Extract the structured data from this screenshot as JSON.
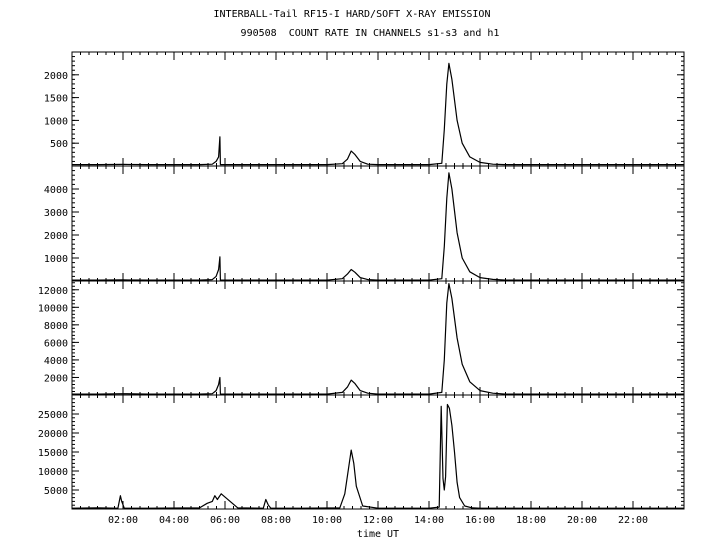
{
  "title": "INTERBALL-Tail RF15-I HARD/SOFT X-RAY EMISSION",
  "subtitle": "990508  COUNT RATE IN CHANNELS s1-s3 and h1",
  "chart_data": {
    "type": "line",
    "title": "INTERBALL-Tail RF15-I HARD/SOFT X-RAY EMISSION",
    "subtitle": "990508  COUNT RATE IN CHANNELS s1-s3 and h1",
    "xlabel": "time UT",
    "xlim": [
      0,
      24
    ],
    "x_ticks": [
      2,
      4,
      6,
      8,
      10,
      12,
      14,
      16,
      18,
      20,
      22
    ],
    "x_tick_labels": [
      "02:00",
      "04:00",
      "06:00",
      "08:00",
      "10:00",
      "12:00",
      "14:00",
      "16:00",
      "18:00",
      "20:00",
      "22:00"
    ],
    "grid": false,
    "panels": [
      {
        "ylim": [
          0,
          2500
        ],
        "y_ticks": [
          500,
          1000,
          1500,
          2000
        ],
        "y_tick_labels": [
          "500",
          "1000",
          "1500",
          "2000"
        ],
        "series": [
          {
            "x": [
              0,
              1,
              2,
              3,
              4,
              5,
              5.5,
              5.65,
              5.75,
              5.8,
              5.82,
              5.9,
              6.5,
              7.5,
              8.5,
              10,
              10.6,
              10.8,
              10.95,
              11.1,
              11.3,
              11.6,
              12,
              13,
              14,
              14.5,
              14.6,
              14.7,
              14.78,
              14.9,
              15.1,
              15.3,
              15.6,
              16,
              16.5,
              17,
              18,
              19,
              20,
              24
            ],
            "y": [
              30,
              30,
              35,
              30,
              30,
              30,
              40,
              100,
              200,
              640,
              30,
              30,
              30,
              30,
              30,
              30,
              50,
              150,
              330,
              250,
              100,
              40,
              30,
              30,
              30,
              60,
              800,
              1800,
              2250,
              1900,
              1000,
              500,
              200,
              80,
              40,
              30,
              30,
              30,
              30,
              30
            ]
          }
        ]
      },
      {
        "ylim": [
          0,
          5000
        ],
        "y_ticks": [
          1000,
          2000,
          3000,
          4000
        ],
        "y_tick_labels": [
          "1000",
          "2000",
          "3000",
          "4000"
        ],
        "series": [
          {
            "x": [
              0,
              1,
              2,
              3,
              4,
              5,
              5.5,
              5.65,
              5.75,
              5.8,
              5.82,
              5.9,
              6.5,
              7.5,
              8.5,
              10,
              10.6,
              10.8,
              10.95,
              11.1,
              11.3,
              11.6,
              12,
              13,
              14,
              14.5,
              14.6,
              14.7,
              14.78,
              14.9,
              15.1,
              15.3,
              15.6,
              16,
              16.5,
              17,
              18,
              19,
              20,
              24
            ],
            "y": [
              40,
              40,
              50,
              40,
              40,
              40,
              60,
              200,
              500,
              1050,
              40,
              40,
              40,
              40,
              40,
              40,
              100,
              300,
              500,
              380,
              150,
              60,
              40,
              40,
              40,
              100,
              1500,
              3600,
              4700,
              4000,
              2100,
              1000,
              400,
              150,
              70,
              40,
              40,
              40,
              40,
              40
            ]
          }
        ]
      },
      {
        "ylim": [
          0,
          13000
        ],
        "y_ticks": [
          2000,
          4000,
          6000,
          8000,
          10000,
          12000
        ],
        "y_tick_labels": [
          "2000",
          "4000",
          "6000",
          "8000",
          "10000",
          "12000"
        ],
        "series": [
          {
            "x": [
              0,
              1,
              2,
              3,
              4,
              5,
              5.5,
              5.65,
              5.75,
              5.8,
              5.82,
              5.9,
              6.5,
              7.5,
              8.5,
              10,
              10.6,
              10.8,
              10.95,
              11.1,
              11.3,
              11.6,
              12,
              13,
              14,
              14.5,
              14.6,
              14.7,
              14.78,
              14.9,
              15.1,
              15.3,
              15.6,
              16,
              16.5,
              17,
              18,
              19,
              20,
              24
            ],
            "y": [
              100,
              100,
              150,
              100,
              100,
              100,
              150,
              500,
              1200,
              2000,
              100,
              100,
              100,
              100,
              100,
              100,
              300,
              900,
              1700,
              1300,
              500,
              200,
              100,
              100,
              100,
              300,
              4000,
              10500,
              12700,
              11000,
              6500,
              3500,
              1500,
              500,
              200,
              100,
              100,
              100,
              100,
              100
            ]
          }
        ]
      },
      {
        "ylim": [
          0,
          30000
        ],
        "y_ticks": [
          5000,
          10000,
          15000,
          20000,
          25000
        ],
        "y_tick_labels": [
          "5000",
          "10000",
          "15000",
          "20000",
          "25000"
        ],
        "series": [
          {
            "x": [
              0,
              1,
              1.8,
              1.9,
              1.95,
              2.05,
              3,
              5,
              5.3,
              5.5,
              5.6,
              5.7,
              5.75,
              5.85,
              6.5,
              7.5,
              7.6,
              7.7,
              7.8,
              9,
              10.5,
              10.7,
              10.85,
              10.95,
              11.05,
              11.15,
              11.4,
              12,
              14,
              14.4,
              14.48,
              14.55,
              14.6,
              14.65,
              14.72,
              14.8,
              14.9,
              15,
              15.1,
              15.2,
              15.4,
              15.7,
              16,
              17,
              20,
              24
            ],
            "y": [
              200,
              300,
              200,
              3500,
              2000,
              200,
              200,
              300,
              1500,
              2000,
              3500,
              2500,
              3000,
              4000,
              300,
              200,
              2500,
              1000,
              200,
              200,
              300,
              4000,
              11000,
              15500,
              12000,
              6000,
              800,
              200,
              200,
              500,
              27000,
              8000,
              5000,
              8500,
              27500,
              26500,
              22000,
              15000,
              7000,
              3000,
              800,
              300,
              200,
              200,
              200,
              200
            ]
          }
        ]
      }
    ]
  }
}
